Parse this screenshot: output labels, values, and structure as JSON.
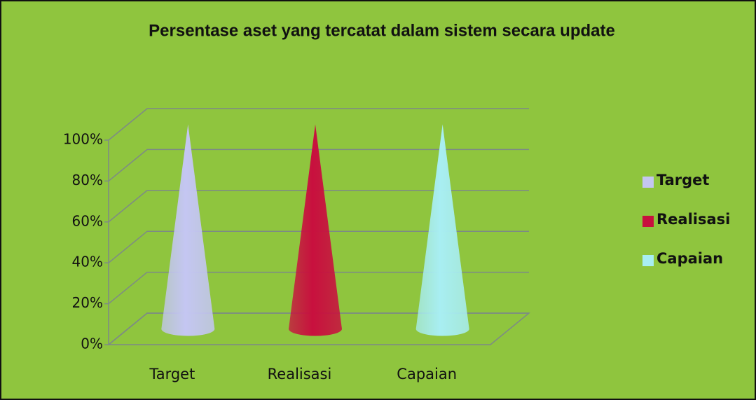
{
  "chart_data": {
    "type": "cone",
    "title": "Persentase aset yang tercatat dalam sistem secara update",
    "categories": [
      "Target",
      "Realisasi",
      "Capaian"
    ],
    "values": [
      100,
      100,
      100
    ],
    "colors": [
      "#c4c6f2",
      "#c8103e",
      "#a8eef2"
    ],
    "ylim": [
      0,
      100
    ],
    "yticks": [
      {
        "value": 0,
        "label": "0%"
      },
      {
        "value": 20,
        "label": "20%"
      },
      {
        "value": 40,
        "label": "40%"
      },
      {
        "value": 60,
        "label": "60%"
      },
      {
        "value": 80,
        "label": "80%"
      },
      {
        "value": 100,
        "label": "100%"
      }
    ],
    "grid": true,
    "legend": "right"
  }
}
